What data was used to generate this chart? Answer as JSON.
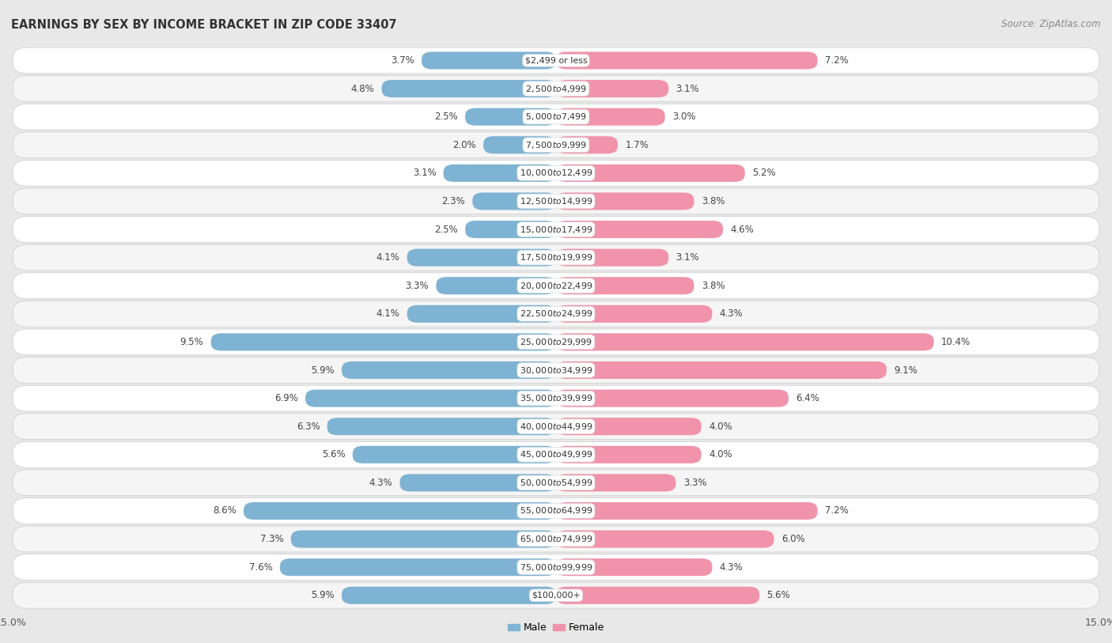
{
  "title": "EARNINGS BY SEX BY INCOME BRACKET IN ZIP CODE 33407",
  "source": "Source: ZipAtlas.com",
  "categories": [
    "$2,499 or less",
    "$2,500 to $4,999",
    "$5,000 to $7,499",
    "$7,500 to $9,999",
    "$10,000 to $12,499",
    "$12,500 to $14,999",
    "$15,000 to $17,499",
    "$17,500 to $19,999",
    "$20,000 to $22,499",
    "$22,500 to $24,999",
    "$25,000 to $29,999",
    "$30,000 to $34,999",
    "$35,000 to $39,999",
    "$40,000 to $44,999",
    "$45,000 to $49,999",
    "$50,000 to $54,999",
    "$55,000 to $64,999",
    "$65,000 to $74,999",
    "$75,000 to $99,999",
    "$100,000+"
  ],
  "male_values": [
    3.7,
    4.8,
    2.5,
    2.0,
    3.1,
    2.3,
    2.5,
    4.1,
    3.3,
    4.1,
    9.5,
    5.9,
    6.9,
    6.3,
    5.6,
    4.3,
    8.6,
    7.3,
    7.6,
    5.9
  ],
  "female_values": [
    7.2,
    3.1,
    3.0,
    1.7,
    5.2,
    3.8,
    4.6,
    3.1,
    3.8,
    4.3,
    10.4,
    9.1,
    6.4,
    4.0,
    4.0,
    3.3,
    7.2,
    6.0,
    4.3,
    5.6
  ],
  "male_color": "#7fb3d3",
  "female_color": "#f093ab",
  "male_label": "Male",
  "female_label": "Female",
  "x_max": 15.0,
  "bg_color": "#e8e8e8",
  "row_color_odd": "#f5f5f5",
  "row_color_even": "#ffffff",
  "title_fontsize": 10.5,
  "source_fontsize": 8.5,
  "value_fontsize": 8.5,
  "cat_fontsize": 8.0,
  "axis_fontsize": 9.0
}
